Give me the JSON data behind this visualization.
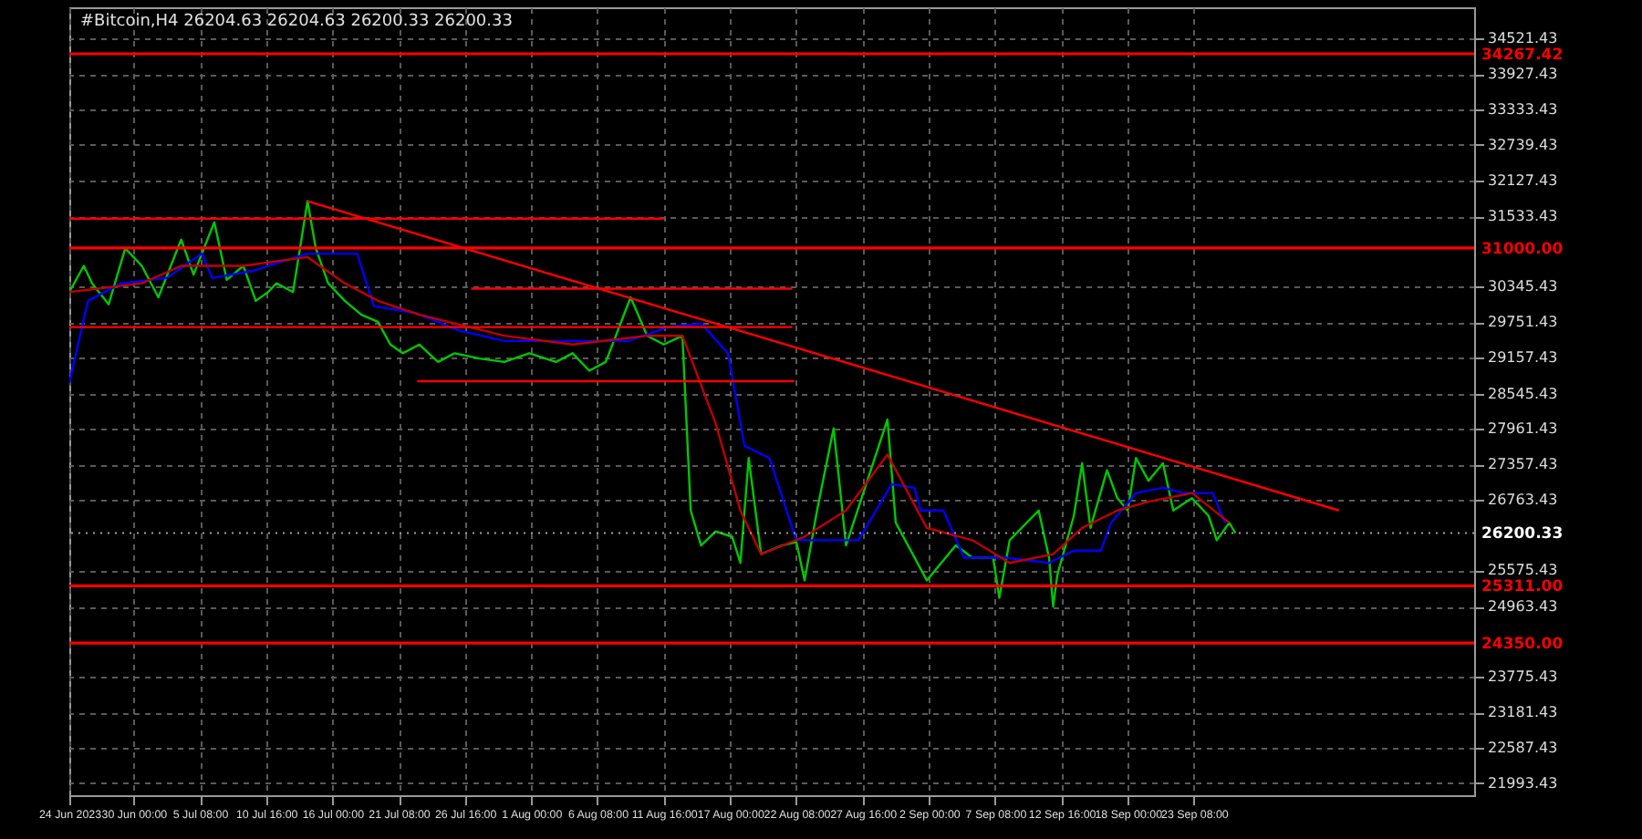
{
  "chart_data": {
    "type": "line",
    "title": "#Bitcoin,H4 26204.63 26204.63 26200.33 26200.33",
    "xlim": [
      "2023-06-24T20:00",
      "2023-10-15T21:00"
    ],
    "xticks": [
      {
        "value": "2023-06-24T20:00",
        "label": "24 Jun 2023"
      },
      {
        "value": "2023-06-30T00:00",
        "label": "30 Jun 00:00"
      },
      {
        "value": "2023-07-05T08:00",
        "label": "5 Jul 08:00"
      },
      {
        "value": "2023-07-10T16:00",
        "label": "10 Jul 16:00"
      },
      {
        "value": "2023-07-16T00:00",
        "label": "16 Jul 00:00"
      },
      {
        "value": "2023-07-21T08:00",
        "label": "21 Jul 08:00"
      },
      {
        "value": "2023-07-26T16:00",
        "label": "26 Jul 16:00"
      },
      {
        "value": "2023-08-01T00:00",
        "label": "1 Aug 00:00"
      },
      {
        "value": "2023-08-06T08:00",
        "label": "6 Aug 08:00"
      },
      {
        "value": "2023-08-11T16:00",
        "label": "11 Aug 16:00"
      },
      {
        "value": "2023-08-17T00:00",
        "label": "17 Aug 00:00"
      },
      {
        "value": "2023-08-22T08:00",
        "label": "22 Aug 08:00"
      },
      {
        "value": "2023-08-27T16:00",
        "label": "27 Aug 16:00"
      },
      {
        "value": "2023-09-02T00:00",
        "label": "2 Sep 00:00"
      },
      {
        "value": "2023-09-07T08:00",
        "label": "7 Sep 08:00"
      },
      {
        "value": "2023-09-12T16:00",
        "label": "12 Sep 16:00"
      },
      {
        "value": "2023-09-18T00:00",
        "label": "18 Sep 00:00"
      },
      {
        "value": "2023-09-23T08:00",
        "label": "23 Sep 08:00"
      }
    ],
    "ylim": [
      21787,
      35050
    ],
    "yticks": [
      34521.43,
      33927.43,
      33333.43,
      32739.43,
      32127.43,
      31533.43,
      30345.43,
      29751.43,
      29157.43,
      28545.43,
      27961.43,
      27357.43,
      26763.43,
      25575.43,
      24963.43,
      23775.43,
      23181.43,
      22587.43,
      21993.43
    ],
    "grid": true,
    "marker": "none",
    "series": [
      {
        "color": "#00c800",
        "x": [
          "2023-06-24T20:00",
          "2023-06-26T00:00",
          "2023-06-26T16:00",
          "2023-06-28T00:00",
          "2023-06-29T08:00",
          "2023-06-30T16:00",
          "2023-07-02T00:00",
          "2023-07-03T20:00",
          "2023-07-04T20:00",
          "2023-07-06T12:00",
          "2023-07-07T12:00",
          "2023-07-08T20:00",
          "2023-07-09T20:00",
          "2023-07-10T20:00",
          "2023-07-11T12:00",
          "2023-07-12T20:00",
          "2023-07-14T00:00",
          "2023-07-14T16:00",
          "2023-07-15T16:00",
          "2023-07-17T00:00",
          "2023-07-18T08:00",
          "2023-07-19T16:00",
          "2023-07-20T16:00",
          "2023-07-21T16:00",
          "2023-07-23T00:00",
          "2023-07-24T12:00",
          "2023-07-25T20:00",
          "2023-07-27T20:00",
          "2023-07-29T20:00",
          "2023-07-31T20:00",
          "2023-08-03T00:00",
          "2023-08-04T08:00",
          "2023-08-05T16:00",
          "2023-08-07T00:00",
          "2023-08-09T00:00",
          "2023-08-10T08:00",
          "2023-08-11T16:00",
          "2023-08-13T04:00",
          "2023-08-13T20:00",
          "2023-08-14T16:00",
          "2023-08-15T20:00",
          "2023-08-17T04:00",
          "2023-08-17T20:00",
          "2023-08-18T12:00",
          "2023-08-19T12:00",
          "2023-08-21T04:00",
          "2023-08-22T08:00",
          "2023-08-23T00:00",
          "2023-08-24T00:00",
          "2023-08-25T08:00",
          "2023-08-26T08:00",
          "2023-08-29T16:00",
          "2023-08-30T08:00",
          "2023-09-01T20:00",
          "2023-09-04T04:00",
          "2023-09-05T12:00",
          "2023-09-07T04:00",
          "2023-09-07T16:00",
          "2023-09-08T12:00",
          "2023-09-10T20:00",
          "2023-09-11T16:00",
          "2023-09-12T00:00",
          "2023-09-12T08:00",
          "2023-09-13T16:00",
          "2023-09-14T08:00",
          "2023-09-15T00:00",
          "2023-09-16T08:00",
          "2023-09-17T04:00",
          "2023-09-18T00:00",
          "2023-09-18T16:00",
          "2023-09-19T16:00",
          "2023-09-20T20:00",
          "2023-09-21T16:00",
          "2023-09-23T04:00",
          "2023-09-24T12:00",
          "2023-09-25T04:00",
          "2023-09-26T04:00",
          "2023-09-26T16:00"
        ],
        "values": [
          30257,
          30698,
          30404,
          30051,
          30992,
          30698,
          30168,
          31139,
          30551,
          31433,
          30462,
          30698,
          30109,
          30257,
          30404,
          30257,
          31786,
          30992,
          30404,
          30109,
          29874,
          29757,
          29374,
          29227,
          29374,
          29080,
          29227,
          29139,
          29080,
          29227,
          29080,
          29227,
          28933,
          29080,
          30168,
          29521,
          29374,
          29521,
          26580,
          25992,
          26227,
          26139,
          25698,
          27463,
          25845,
          25992,
          26051,
          25404,
          26580,
          27963,
          25992,
          28110,
          26374,
          25404,
          25992,
          25786,
          25786,
          25110,
          26080,
          26580,
          25786,
          24963,
          25492,
          26492,
          27374,
          26286,
          27257,
          26786,
          26580,
          27463,
          27080,
          27374,
          26580,
          26786,
          26492,
          26080,
          26374,
          26200
        ]
      },
      {
        "color": "#0000ff",
        "x": [
          "2023-06-24T20:00",
          "2023-06-26T08:00",
          "2023-06-29T00:00",
          "2023-07-02T16:00",
          "2023-07-05T12:00",
          "2023-07-06T08:00",
          "2023-07-09T12:00",
          "2023-07-14T00:00",
          "2023-07-18T00:00",
          "2023-07-19T08:00",
          "2023-07-22T16:00",
          "2023-07-26T04:00",
          "2023-07-29T20:00",
          "2023-08-08T20:00",
          "2023-08-12T00:00",
          "2023-08-14T16:00",
          "2023-08-16T20:00",
          "2023-08-18T04:00",
          "2023-08-20T04:00",
          "2023-08-22T08:00",
          "2023-08-27T08:00",
          "2023-08-30T00:00",
          "2023-08-31T20:00",
          "2023-09-01T08:00",
          "2023-09-03T04:00",
          "2023-09-04T20:00",
          "2023-09-08T04:00",
          "2023-09-11T16:00",
          "2023-09-13T16:00",
          "2023-09-15T20:00",
          "2023-09-16T16:00",
          "2023-09-18T16:00",
          "2023-09-20T20:00",
          "2023-09-22T12:00",
          "2023-09-24T20:00",
          "2023-09-25T20:00"
        ],
        "values": [
          28727,
          30109,
          30404,
          30492,
          30904,
          30492,
          30609,
          30904,
          30904,
          30021,
          29904,
          29610,
          29433,
          29433,
          29668,
          29727,
          29227,
          27668,
          27463,
          26080,
          26080,
          27021,
          26963,
          26580,
          26580,
          25786,
          25786,
          25698,
          25904,
          25904,
          26374,
          26874,
          26963,
          26874,
          26874,
          26374
        ]
      },
      {
        "color": "#c00000",
        "x": [
          "2023-06-24T20:00",
          "2023-06-30T16:00",
          "2023-07-03T20:00",
          "2023-07-08T20:00",
          "2023-07-14T00:00",
          "2023-07-17T00:00",
          "2023-07-19T16:00",
          "2023-07-23T00:00",
          "2023-07-29T20:00",
          "2023-08-04T08:00",
          "2023-08-10T08:00",
          "2023-08-13T04:00",
          "2023-08-15T20:00",
          "2023-08-17T20:00",
          "2023-08-19T12:00",
          "2023-08-23T00:00",
          "2023-08-26T08:00",
          "2023-08-29T16:00",
          "2023-09-01T20:00",
          "2023-09-05T12:00",
          "2023-09-08T12:00",
          "2023-09-12T00:00",
          "2023-09-14T08:00",
          "2023-09-17T04:00",
          "2023-09-19T16:00",
          "2023-09-23T04:00",
          "2023-09-26T04:00"
        ],
        "values": [
          30257,
          30404,
          30698,
          30698,
          30845,
          30404,
          30109,
          29874,
          29521,
          29374,
          29521,
          29521,
          28051,
          26580,
          25845,
          26139,
          26580,
          27521,
          26286,
          26080,
          25698,
          25845,
          26286,
          26580,
          26727,
          26874,
          26374
        ]
      },
      {
        "color": "#ff0000",
        "x": [
          "2023-06-24T20:00",
          "2023-08-11T16:00"
        ],
        "values": [
          31492,
          31492
        ]
      },
      {
        "color": "#ff0000",
        "x": [
          "2023-07-27T04:00",
          "2023-08-22T00:00"
        ],
        "values": [
          30315,
          30315
        ]
      },
      {
        "color": "#ff0000",
        "x": [
          "2023-06-24T20:00",
          "2023-08-22T00:00"
        ],
        "values": [
          29668,
          29668
        ]
      },
      {
        "color": "#ff0000",
        "x": [
          "2023-07-22T20:00",
          "2023-08-22T04:00"
        ],
        "values": [
          28757,
          28757
        ]
      },
      {
        "color": "#ff0000",
        "x": [
          "2023-07-14T00:00",
          "2023-10-05T00:00"
        ],
        "values": [
          31786,
          26580
        ]
      }
    ],
    "ref_lines": [
      {
        "axis": "y",
        "value": 34267.42,
        "label": "34267.42",
        "color": "#ff0000",
        "line_style": "solid"
      },
      {
        "axis": "y",
        "value": 31000,
        "label": "31000.00",
        "color": "#ff0000",
        "line_style": "solid"
      },
      {
        "axis": "y",
        "value": 26200.33,
        "label": "26200.33",
        "color": "#a0a0a0",
        "line_style": "dotted"
      },
      {
        "axis": "y",
        "value": 25311,
        "label": "25311.00",
        "color": "#ff0000",
        "line_style": "solid"
      },
      {
        "axis": "y",
        "value": 24350,
        "label": "24350.00",
        "color": "#ff0000",
        "line_style": "solid"
      }
    ]
  }
}
